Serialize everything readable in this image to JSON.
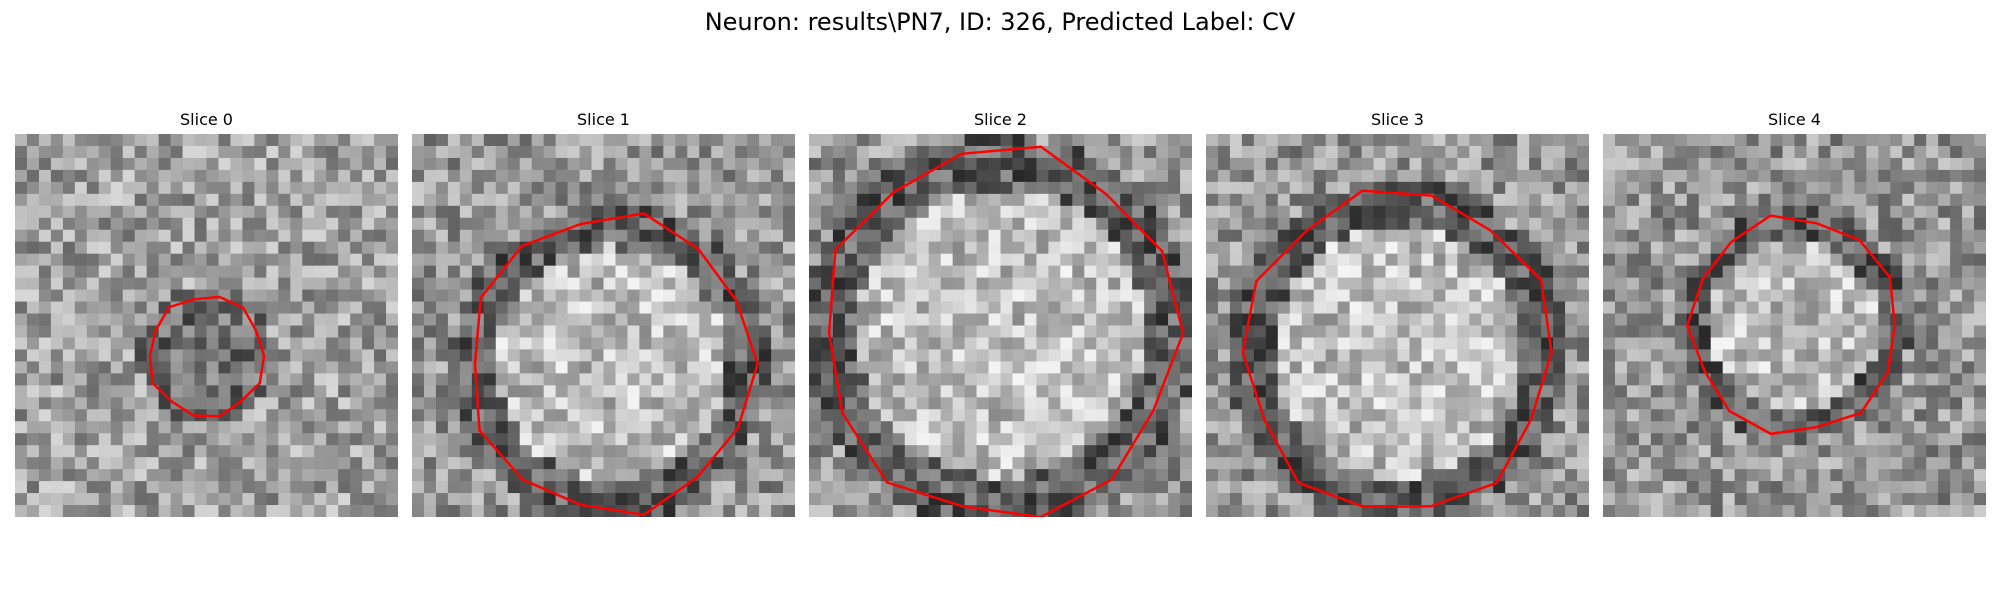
{
  "figure": {
    "title": "Neuron: results\\PN7, ID: 326, Predicted Label: CV",
    "outline_color": "#ff0000"
  },
  "panels": [
    {
      "label": "Slice 0",
      "outline_radius": 0.15,
      "center": [
        0.5,
        0.58
      ]
    },
    {
      "label": "Slice 1",
      "outline_radius": 0.37,
      "center": [
        0.52,
        0.6
      ]
    },
    {
      "label": "Slice 2",
      "outline_radius": 0.46,
      "center": [
        0.5,
        0.52
      ]
    },
    {
      "label": "Slice 3",
      "outline_radius": 0.4,
      "center": [
        0.5,
        0.57
      ]
    },
    {
      "label": "Slice 4",
      "outline_radius": 0.27,
      "center": [
        0.5,
        0.5
      ]
    }
  ]
}
